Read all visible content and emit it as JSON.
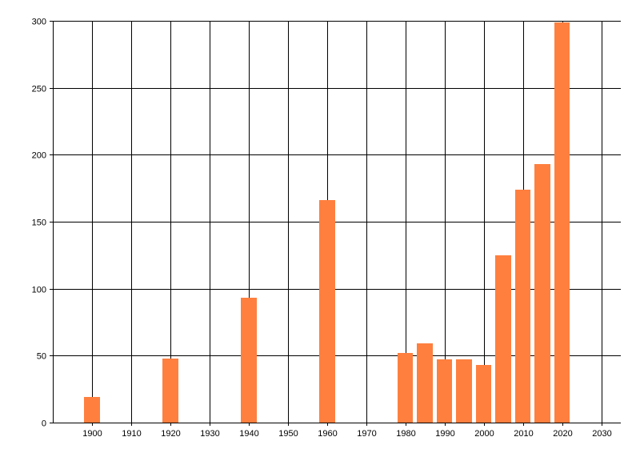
{
  "chart_data": {
    "type": "bar",
    "x": [
      1900,
      1920,
      1940,
      1960,
      1980,
      1985,
      1990,
      1995,
      2000,
      2005,
      2010,
      2015,
      2020
    ],
    "values": [
      19,
      48,
      93,
      166,
      52,
      59,
      47,
      47,
      43,
      125,
      174,
      193,
      299
    ],
    "xlim": [
      1890,
      2035
    ],
    "ylim": [
      0,
      300
    ],
    "x_ticks": [
      1900,
      1910,
      1920,
      1930,
      1940,
      1950,
      1960,
      1970,
      1980,
      1990,
      2000,
      2010,
      2020,
      2030
    ],
    "y_ticks": [
      0,
      50,
      100,
      150,
      200,
      250,
      300
    ],
    "bar_width_years": 4,
    "bar_color": "#FF7F3F",
    "grid": true,
    "title": "",
    "xlabel": "",
    "ylabel": ""
  }
}
